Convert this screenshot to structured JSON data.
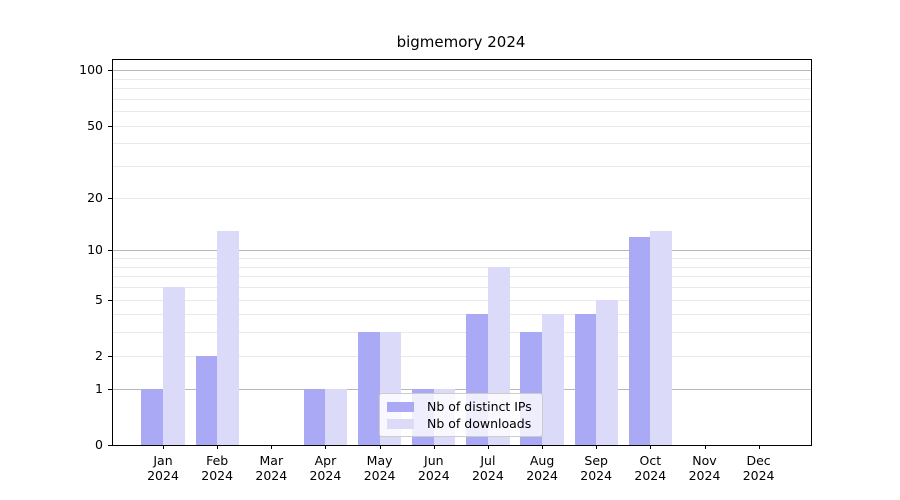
{
  "chart_data": {
    "type": "bar",
    "title": "bigmemory 2024",
    "categories": [
      "Jan",
      "Feb",
      "Mar",
      "Apr",
      "May",
      "Jun",
      "Jul",
      "Aug",
      "Sep",
      "Oct",
      "Nov",
      "Dec"
    ],
    "year_label": "2024",
    "series": [
      {
        "name": "Nb of distinct IPs",
        "color": "#a9a9f6",
        "values": [
          1,
          2,
          0,
          1,
          3,
          1,
          4,
          3,
          4,
          12,
          0,
          0
        ]
      },
      {
        "name": "Nb of downloads",
        "color": "#dbdbf9",
        "values": [
          6,
          13,
          0,
          1,
          3,
          1,
          8,
          4,
          5,
          13,
          0,
          0
        ]
      }
    ],
    "yscale": "log1p",
    "ylim": [
      0,
      114
    ],
    "yticks": [
      0,
      1,
      2,
      5,
      10,
      20,
      50,
      100
    ],
    "major_gridlines": [
      1,
      10,
      100
    ],
    "minor_gridlines": [
      2,
      3,
      4,
      5,
      6,
      7,
      8,
      9,
      20,
      30,
      40,
      50,
      60,
      70,
      80,
      90
    ],
    "grid": true,
    "legend_position": "lower center",
    "colors": {
      "major_grid": "#b8b8b8",
      "minor_grid": "#e9e9e9",
      "axis": "#000000",
      "legend_border": "#cccccc"
    }
  }
}
